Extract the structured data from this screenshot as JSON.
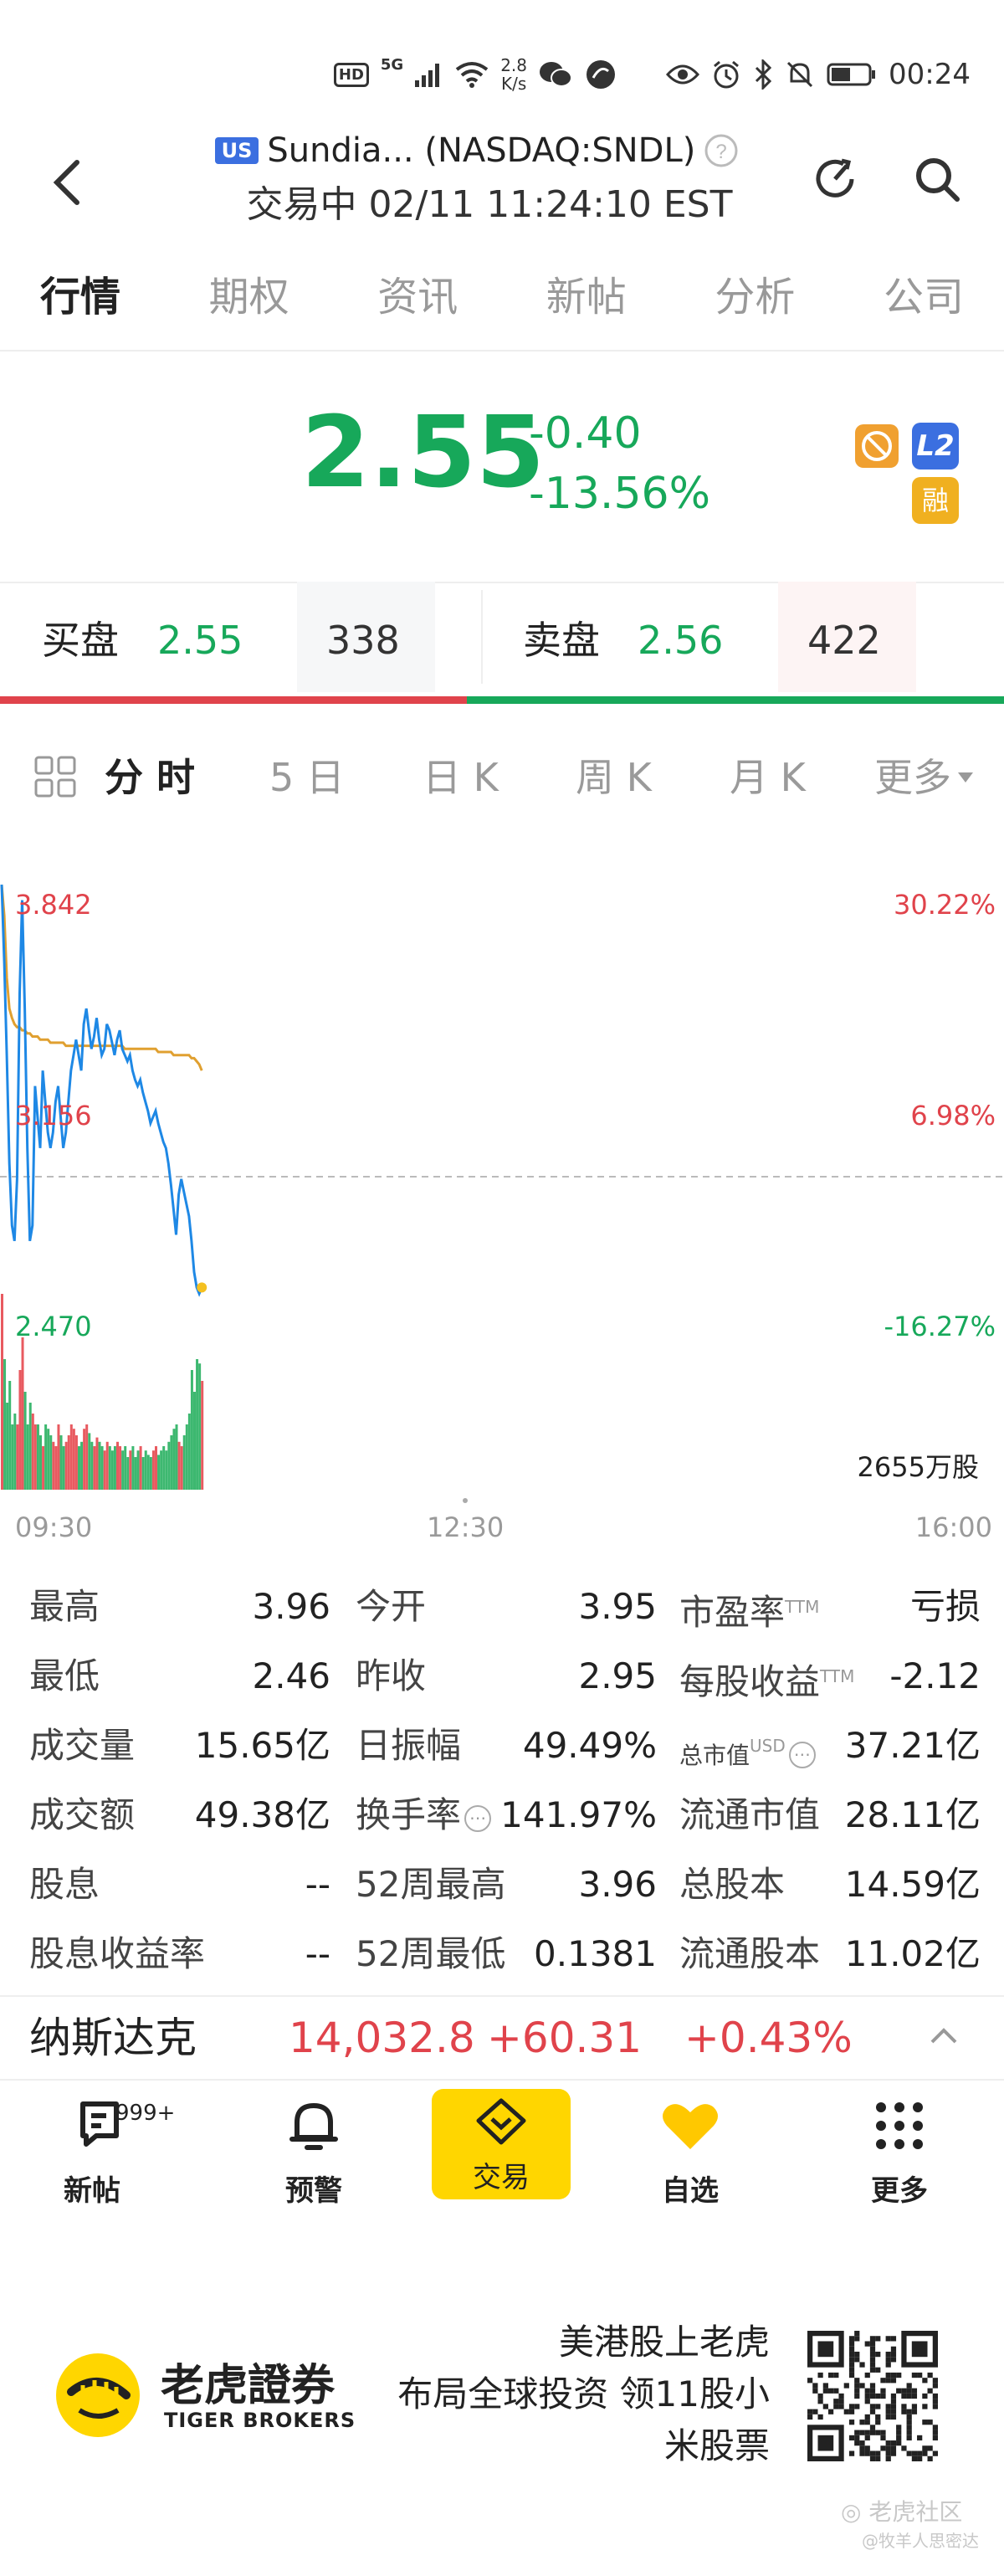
{
  "status_bar": {
    "hd": "HD",
    "net": "5G",
    "speed_value": "2.8",
    "speed_unit": "K/s",
    "time": "00:24"
  },
  "header": {
    "market_badge": "US",
    "title": "Sundia... (NASDAQ:SNDL)",
    "subtitle": "交易中 02/11 11:24:10 EST"
  },
  "tabs": [
    "行情",
    "期权",
    "资讯",
    "新帖",
    "分析",
    "公司"
  ],
  "quote": {
    "price": "2.55",
    "change": "-0.40",
    "change_pct": "-13.56%",
    "badge_l2": "L2",
    "badge_margin": "融",
    "colors": {
      "down": "#17a85a",
      "up": "#e0434b"
    }
  },
  "order_book": {
    "bid_label": "买盘",
    "bid_price": "2.55",
    "bid_size": "338",
    "ask_label": "卖盘",
    "ask_price": "2.56",
    "ask_size": "422",
    "bid_ratio": 0.465
  },
  "chart_tabs": [
    "分 时",
    "5 日",
    "日 K",
    "周 K",
    "月 K",
    "更多"
  ],
  "chart_data": {
    "type": "line",
    "price_labels": {
      "high": "3.842",
      "mid": "3.156",
      "low": "2.470"
    },
    "pct_labels": {
      "high": "30.22%",
      "mid": "6.98%",
      "low": "-16.27%"
    },
    "volume_label": "2655万股",
    "x_ticks": [
      "09:30",
      "12:30",
      "16:00"
    ],
    "ylim": [
      2.47,
      3.842
    ],
    "series": [
      {
        "values": [
          3.85,
          3.6,
          3.3,
          2.95,
          2.75,
          2.7,
          2.9,
          3.5,
          3.8,
          3.45,
          3.0,
          2.7,
          2.75,
          3.2,
          3.1,
          3.0,
          3.25,
          3.15,
          3.05,
          3.0,
          3.05,
          3.15,
          3.2,
          3.1,
          3.0,
          3.05,
          3.15,
          3.25,
          3.3,
          3.35,
          3.3,
          3.25,
          3.4,
          3.45,
          3.38,
          3.32,
          3.36,
          3.42,
          3.35,
          3.3,
          3.32,
          3.4,
          3.38,
          3.34,
          3.3,
          3.35,
          3.38,
          3.32,
          3.3,
          3.28,
          3.3,
          3.25,
          3.22,
          3.2,
          3.22,
          3.18,
          3.15,
          3.12,
          3.08,
          3.1,
          3.12,
          3.08,
          3.05,
          3.02,
          3.0,
          2.95,
          2.88,
          2.8,
          2.72,
          2.85,
          2.9,
          2.86,
          2.82,
          2.78,
          2.7,
          2.6,
          2.55,
          2.53,
          2.55
        ]
      },
      {
        "values": [
          3.85,
          3.75,
          3.55,
          3.45,
          3.42,
          3.4,
          3.39,
          3.39,
          3.38,
          3.38,
          3.37,
          3.37,
          3.36,
          3.36,
          3.36,
          3.35,
          3.35,
          3.35,
          3.35,
          3.34,
          3.34,
          3.34,
          3.34,
          3.34,
          3.34,
          3.33,
          3.33,
          3.33,
          3.33,
          3.33,
          3.33,
          3.33,
          3.33,
          3.33,
          3.33,
          3.33,
          3.33,
          3.33,
          3.33,
          3.33,
          3.33,
          3.33,
          3.33,
          3.33,
          3.33,
          3.33,
          3.33,
          3.33,
          3.32,
          3.32,
          3.32,
          3.32,
          3.32,
          3.32,
          3.32,
          3.32,
          3.32,
          3.32,
          3.32,
          3.32,
          3.32,
          3.31,
          3.31,
          3.31,
          3.31,
          3.31,
          3.31,
          3.3,
          3.3,
          3.3,
          3.3,
          3.3,
          3.3,
          3.3,
          3.29,
          3.29,
          3.28,
          3.27,
          3.25
        ]
      }
    ],
    "volume": [
      0.9,
      0.6,
      0.4,
      0.5,
      0.3,
      0.35,
      0.3,
      0.55,
      0.7,
      0.45,
      0.3,
      0.4,
      0.35,
      0.3,
      0.3,
      0.25,
      0.2,
      0.3,
      0.28,
      0.25,
      0.22,
      0.2,
      0.3,
      0.25,
      0.2,
      0.22,
      0.25,
      0.3,
      0.28,
      0.25,
      0.2,
      0.22,
      0.28,
      0.3,
      0.26,
      0.22,
      0.2,
      0.24,
      0.22,
      0.2,
      0.18,
      0.22,
      0.2,
      0.18,
      0.2,
      0.22,
      0.2,
      0.18,
      0.2,
      0.15,
      0.18,
      0.2,
      0.15,
      0.18,
      0.2,
      0.15,
      0.18,
      0.16,
      0.15,
      0.18,
      0.2,
      0.16,
      0.18,
      0.2,
      0.18,
      0.22,
      0.25,
      0.28,
      0.3,
      0.22,
      0.2,
      0.25,
      0.3,
      0.35,
      0.55,
      0.45,
      0.6,
      0.58,
      0.5
    ]
  },
  "stats": [
    {
      "label": "最高",
      "value": "3.96"
    },
    {
      "label": "今开",
      "value": "3.95"
    },
    {
      "label": "市盈率",
      "sup": "TTM",
      "value": "亏损"
    },
    {
      "label": "最低",
      "value": "2.46"
    },
    {
      "label": "昨收",
      "value": "2.95"
    },
    {
      "label": "每股收益",
      "sup": "TTM",
      "value": "-2.12"
    },
    {
      "label": "成交量",
      "value": "15.65亿"
    },
    {
      "label": "日振幅",
      "value": "49.49%"
    },
    {
      "label": "总市值",
      "sup": "USD",
      "value": "37.21亿"
    },
    {
      "label": "成交额",
      "value": "49.38亿"
    },
    {
      "label": "换手率",
      "value": "141.97%"
    },
    {
      "label": "流通市值",
      "value": "28.11亿"
    },
    {
      "label": "股息",
      "value": "--"
    },
    {
      "label": "52周最高",
      "value": "3.96"
    },
    {
      "label": "总股本",
      "value": "14.59亿"
    },
    {
      "label": "股息收益率",
      "value": "--"
    },
    {
      "label": "52周最低",
      "value": "0.1381"
    },
    {
      "label": "流通股本",
      "value": "11.02亿"
    }
  ],
  "index_bar": {
    "name": "纳斯达克",
    "value": "14,032.8",
    "change": "+60.31",
    "change_pct": "+0.43%"
  },
  "nav": {
    "items": [
      {
        "label": "新帖",
        "icon": "post-icon",
        "badge": "999+"
      },
      {
        "label": "预警",
        "icon": "bell-icon"
      },
      {
        "label": "交易",
        "icon": "trade-icon"
      },
      {
        "label": "自选",
        "icon": "heart-icon"
      },
      {
        "label": "更多",
        "icon": "grid-icon"
      }
    ],
    "accent": "#ffd600"
  },
  "ad": {
    "brand_cn": "老虎證券",
    "brand_en": "TIGER BROKERS",
    "slogan_lines": [
      "美港股上老虎",
      "布局全球投资 领11股小",
      "米股票"
    ],
    "watermark": "老虎社区",
    "watermark_user": "@牧羊人思密达"
  }
}
